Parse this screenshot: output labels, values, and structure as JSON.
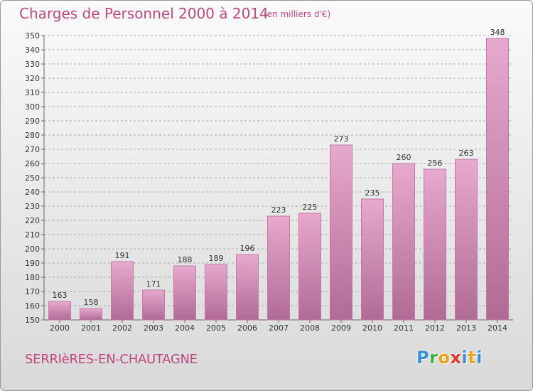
{
  "title": "Charges de Personnel 2000 à 2014",
  "subtitle": "(en milliers d'€)",
  "location": "SERRIèRES-EN-CHAUTAGNE",
  "logo_text": "Proxiti",
  "colors": {
    "title": "#c2477e",
    "bar_top": "#e7a9cd",
    "bar_bottom": "#b06b95",
    "bar_edge": "#c27aa5"
  },
  "chart_data": {
    "type": "bar",
    "categories": [
      "2000",
      "2001",
      "2002",
      "2003",
      "2004",
      "2005",
      "2006",
      "2007",
      "2008",
      "2009",
      "2010",
      "2011",
      "2012",
      "2013",
      "2014"
    ],
    "values": [
      163,
      158,
      191,
      171,
      188,
      189,
      196,
      223,
      225,
      273,
      235,
      260,
      256,
      263,
      348
    ],
    "ylim": [
      150,
      350
    ],
    "yticks": [
      150,
      160,
      170,
      180,
      190,
      200,
      210,
      220,
      230,
      240,
      250,
      260,
      270,
      280,
      290,
      300,
      310,
      320,
      330,
      340,
      350
    ],
    "grid": "horizontal dashed",
    "xlabel": "",
    "ylabel": ""
  }
}
